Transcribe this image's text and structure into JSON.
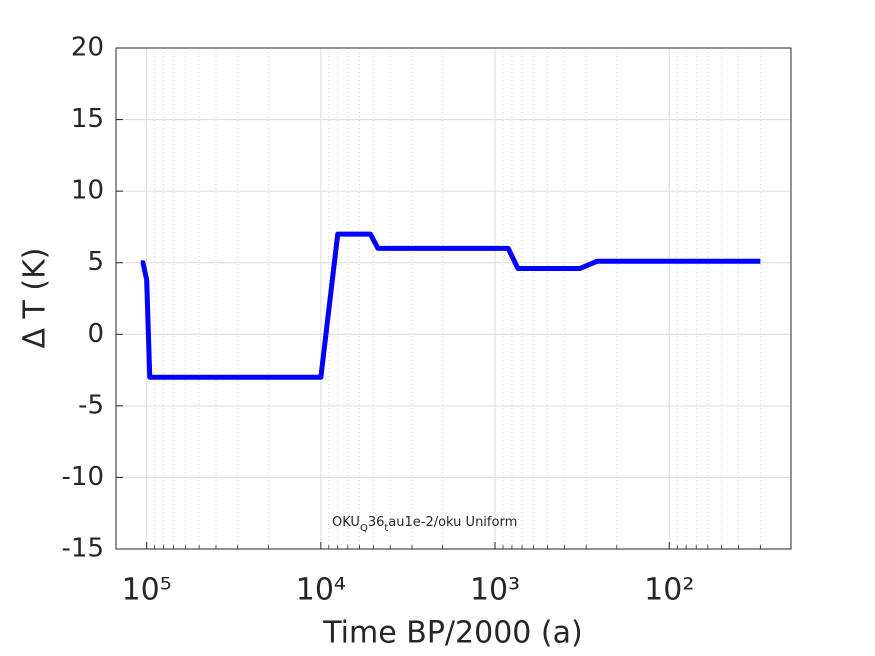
{
  "chart_data": {
    "type": "line",
    "xlabel": "Time BP/2000 (a)",
    "ylabel": "Δ T (K)",
    "annotation": [
      "OKU",
      "Q",
      "36",
      "t",
      "au1e-2/oku Uniform"
    ],
    "x": [
      108000,
      105000,
      100000,
      96000,
      10000,
      8000,
      5200,
      4700,
      840,
      740,
      325,
      260,
      30
    ],
    "series": [
      {
        "color": "#0000ff",
        "values": [
          5,
          5,
          3.8,
          -3,
          -3,
          7,
          7,
          6,
          6,
          4.6,
          4.6,
          5.1,
          5.1
        ]
      }
    ],
    "xscale": "log",
    "xreversed": true,
    "xlim": [
      150000,
      20
    ],
    "ylim": [
      -15,
      20
    ],
    "xticks": [
      {
        "value": 100000,
        "label": "10⁵"
      },
      {
        "value": 10000,
        "label": "10⁴"
      },
      {
        "value": 1000,
        "label": "10³"
      },
      {
        "value": 100,
        "label": "10²"
      }
    ],
    "xminorticks": [
      20,
      30,
      40,
      50,
      60,
      70,
      80,
      90,
      200,
      300,
      400,
      500,
      600,
      700,
      800,
      900,
      2000,
      3000,
      4000,
      5000,
      6000,
      7000,
      8000,
      9000,
      20000,
      30000,
      40000,
      50000,
      60000,
      70000,
      80000,
      90000
    ],
    "yticks": [
      -15,
      -10,
      -5,
      0,
      5,
      10,
      15,
      20
    ],
    "grid": true
  }
}
